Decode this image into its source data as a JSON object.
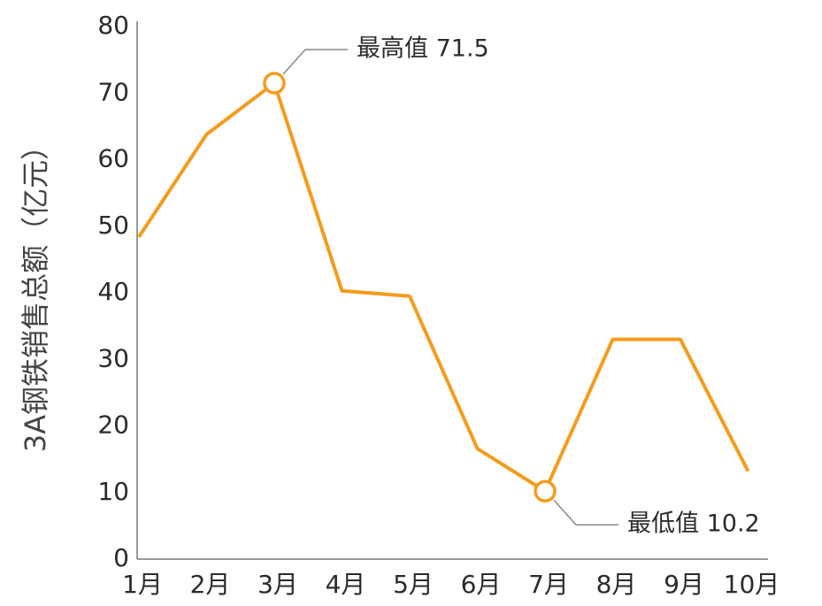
{
  "chart_data": {
    "type": "line",
    "y_label": "3A钢铁销售总额（亿元）",
    "categories": [
      "1月",
      "2月",
      "3月",
      "4月",
      "5月",
      "6月",
      "7月",
      "8月",
      "9月",
      "10月"
    ],
    "series": [
      {
        "name": "3A钢铁销售总额",
        "color": "#f49c1c",
        "values": [
          48.4,
          63.8,
          71.5,
          40.3,
          39.5,
          16.6,
          10.2,
          33,
          33,
          13.2
        ]
      }
    ],
    "annotations": [
      "最高值 71.5",
      "最低值 10.2"
    ],
    "ylim": [
      0,
      80
    ],
    "yticks": [
      0,
      10,
      20,
      30,
      40,
      50,
      60,
      70,
      80
    ],
    "grid": false
  }
}
